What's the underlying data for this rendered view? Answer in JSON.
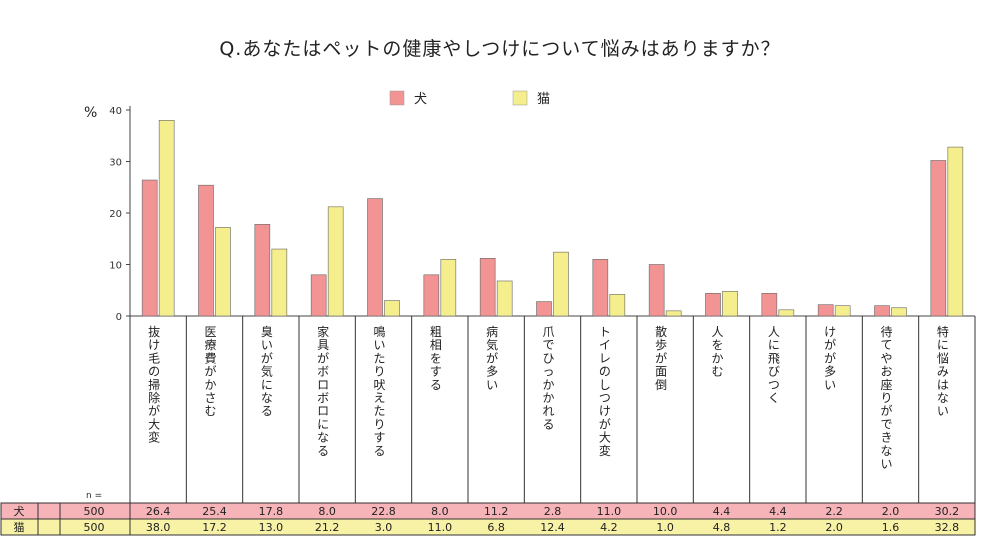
{
  "chart_data": {
    "type": "bar",
    "title": "Q.あなたはペットの健康やしつけについて悩みはありますか？",
    "ylabel": "%",
    "ylim": [
      0,
      40
    ],
    "yticks": [
      0,
      10,
      20,
      30,
      40
    ],
    "legend_position": "top-center",
    "categories": [
      "抜け毛の掃除が大変",
      "医療費がかさむ",
      "臭いが気になる",
      "家具がボロボロになる",
      "鳴いたり吠えたりする",
      "粗相をする",
      "病気が多い",
      "爪でひっかかれる",
      "トイレのしつけが大変",
      "散歩が面倒",
      "人をかむ",
      "人に飛びつく",
      "けがが多い",
      "待てやお座りができない",
      "特に悩みはない"
    ],
    "series": [
      {
        "name": "犬",
        "color": "#F29494",
        "row_color": "#F6B3B8",
        "n": "500",
        "values": [
          26.4,
          25.4,
          17.8,
          8.0,
          22.8,
          8.0,
          11.2,
          2.8,
          11.0,
          10.0,
          4.4,
          4.4,
          2.2,
          2.0,
          30.2
        ],
        "labels": [
          "26.4",
          "25.4",
          "17.8",
          "8.0",
          "22.8",
          "8.0",
          "11.2",
          "2.8",
          "11.0",
          "10.0",
          "4.4",
          "4.4",
          "2.2",
          "2.0",
          "30.2"
        ]
      },
      {
        "name": "猫",
        "color": "#F5EE8C",
        "row_color": "#F7F2A6",
        "n": "500",
        "values": [
          38.0,
          17.2,
          13.0,
          21.2,
          3.0,
          11.0,
          6.8,
          12.4,
          4.2,
          1.0,
          4.8,
          1.2,
          2.0,
          1.6,
          32.8
        ],
        "labels": [
          "38.0",
          "17.2",
          "13.0",
          "21.2",
          "3.0",
          "11.0",
          "6.8",
          "12.4",
          "4.2",
          "1.0",
          "4.8",
          "1.2",
          "2.0",
          "1.6",
          "32.8"
        ]
      }
    ],
    "n_label": "n ="
  }
}
